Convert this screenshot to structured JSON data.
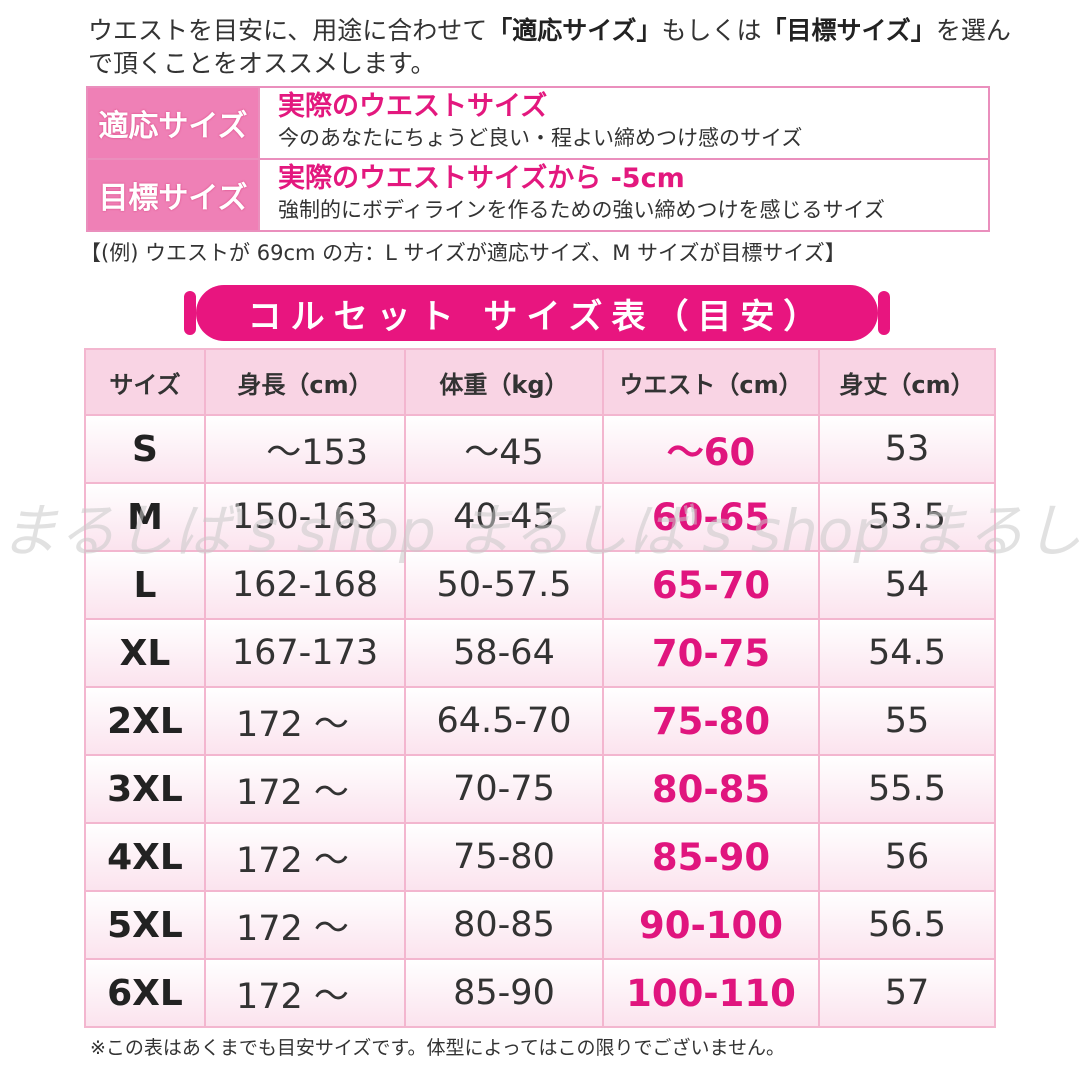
{
  "intro": {
    "part1": "ウエストを目安に、用途に合わせて",
    "term1": "「適応サイズ」",
    "part2": "もしくは",
    "term2": "「目標サイズ」",
    "part3": "を選んで頂くことをオススメします。"
  },
  "definitions": [
    {
      "label": "適応サイズ",
      "title": "実際のウエストサイズ",
      "desc": "今のあなたにちょうど良い・程よい締めつけ感のサイズ"
    },
    {
      "label": "目標サイズ",
      "title": "実際のウエストサイズから -5cm",
      "desc": "強制的にボディラインを作るための強い締めつけを感じるサイズ"
    }
  ],
  "example": "【(例) ウエストが 69cm の方：L サイズが適応サイズ、M サイズが目標サイズ】",
  "banner": "コルセット サイズ表（目安）",
  "table": {
    "headers": [
      "サイズ",
      "身長（cm）",
      "体重（kg）",
      "ウエスト（cm）",
      "身丈（cm）"
    ],
    "rows": [
      [
        "S",
        "～153",
        "～45",
        "～60",
        "53"
      ],
      [
        "M",
        "150-163",
        "40-45",
        "60-65",
        "53.5"
      ],
      [
        "L",
        "162-168",
        "50-57.5",
        "65-70",
        "54"
      ],
      [
        "XL",
        "167-173",
        "58-64",
        "70-75",
        "54.5"
      ],
      [
        "2XL",
        "172 ～",
        "64.5-70",
        "75-80",
        "55"
      ],
      [
        "3XL",
        "172 ～",
        "70-75",
        "80-85",
        "55.5"
      ],
      [
        "4XL",
        "172 ～",
        "75-80",
        "85-90",
        "56"
      ],
      [
        "5XL",
        "172 ～",
        "80-85",
        "90-100",
        "56.5"
      ],
      [
        "6XL",
        "172 ～",
        "85-90",
        "100-110",
        "57"
      ]
    ]
  },
  "note": "※この表はあくまでも目安サイズです。体型によってはこの限りでございません。",
  "watermark": "まるしば's shop まるしば's shop まるしば's shop",
  "colors": {
    "accent": "#e8157f",
    "header_bg": "#f9d4e4",
    "label_bg": "#ef80b6",
    "border": "#f3b6cf"
  }
}
